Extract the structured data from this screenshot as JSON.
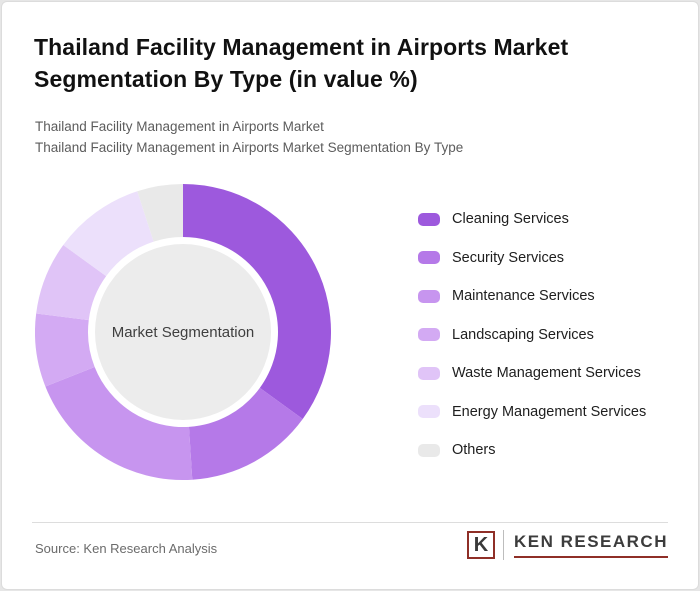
{
  "header": {
    "title": "Thailand Facility Management in Airports Market Segmentation By Type (in value %)",
    "subtitle1": "Thailand Facility Management in Airports Market",
    "subtitle2": "Thailand Facility Management in Airports Market Segmentation By Type"
  },
  "chart_data": {
    "type": "pie",
    "subtype": "donut",
    "title": "Thailand Facility Management in Airports Market Segmentation By Type (in value %)",
    "units": "value %",
    "center_label": "Market Segmentation",
    "legend_position": "right",
    "start_angle_deg": 0,
    "direction": "clockwise",
    "center_color": "#ececec",
    "series": [
      {
        "name": "Cleaning Services",
        "value": 35,
        "color": "#9d59dd"
      },
      {
        "name": "Security Services",
        "value": 14,
        "color": "#b579e8"
      },
      {
        "name": "Maintenance Services",
        "value": 20,
        "color": "#c795ef"
      },
      {
        "name": "Landscaping Services",
        "value": 8,
        "color": "#d3aaf3"
      },
      {
        "name": "Waste Management Services",
        "value": 8,
        "color": "#e0c4f7"
      },
      {
        "name": "Energy Management Services",
        "value": 10,
        "color": "#ece0fb"
      },
      {
        "name": "Others",
        "value": 5,
        "color": "#e9e9e9"
      }
    ]
  },
  "footer": {
    "source": "Source: Ken Research Analysis",
    "logo": {
      "mark": "K",
      "name": "KEN RESEARCH",
      "accent_color": "#8f2f27"
    }
  }
}
